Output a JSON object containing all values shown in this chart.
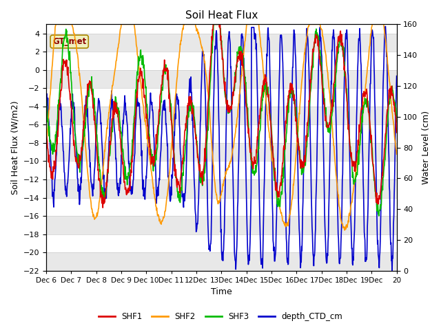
{
  "title": "Soil Heat Flux",
  "xlabel": "Time",
  "ylabel_left": "Soil Heat Flux (W/m2)",
  "ylabel_right": "Water Level (cm)",
  "ylim_left": [
    -22,
    5
  ],
  "ylim_right": [
    0,
    160
  ],
  "yticks_left": [
    -22,
    -20,
    -18,
    -16,
    -14,
    -12,
    -10,
    -8,
    -6,
    -4,
    -2,
    0,
    2,
    4
  ],
  "yticks_right": [
    0,
    20,
    40,
    60,
    80,
    100,
    120,
    140,
    160
  ],
  "annotation_text": "GT_met",
  "colors": {
    "SHF1": "#dd0000",
    "SHF2": "#ff9900",
    "SHF3": "#00bb00",
    "depth_CTD_cm": "#0000cc"
  },
  "bg_color": "#ffffff",
  "plot_bg_light": "#e8e8e8",
  "plot_bg_white": "#ffffff",
  "grid_color": "#cccccc",
  "xtick_labels": [
    "Dec 6",
    "Dec 7",
    "Dec 8",
    "Dec 9",
    "Dec 10",
    "Dec 11",
    "12Dec",
    "13Dec",
    "14Dec",
    "15Dec",
    "16Dec",
    "17Dec",
    "18Dec",
    "19Dec",
    "20"
  ],
  "figsize": [
    6.4,
    4.8
  ],
  "dpi": 100
}
